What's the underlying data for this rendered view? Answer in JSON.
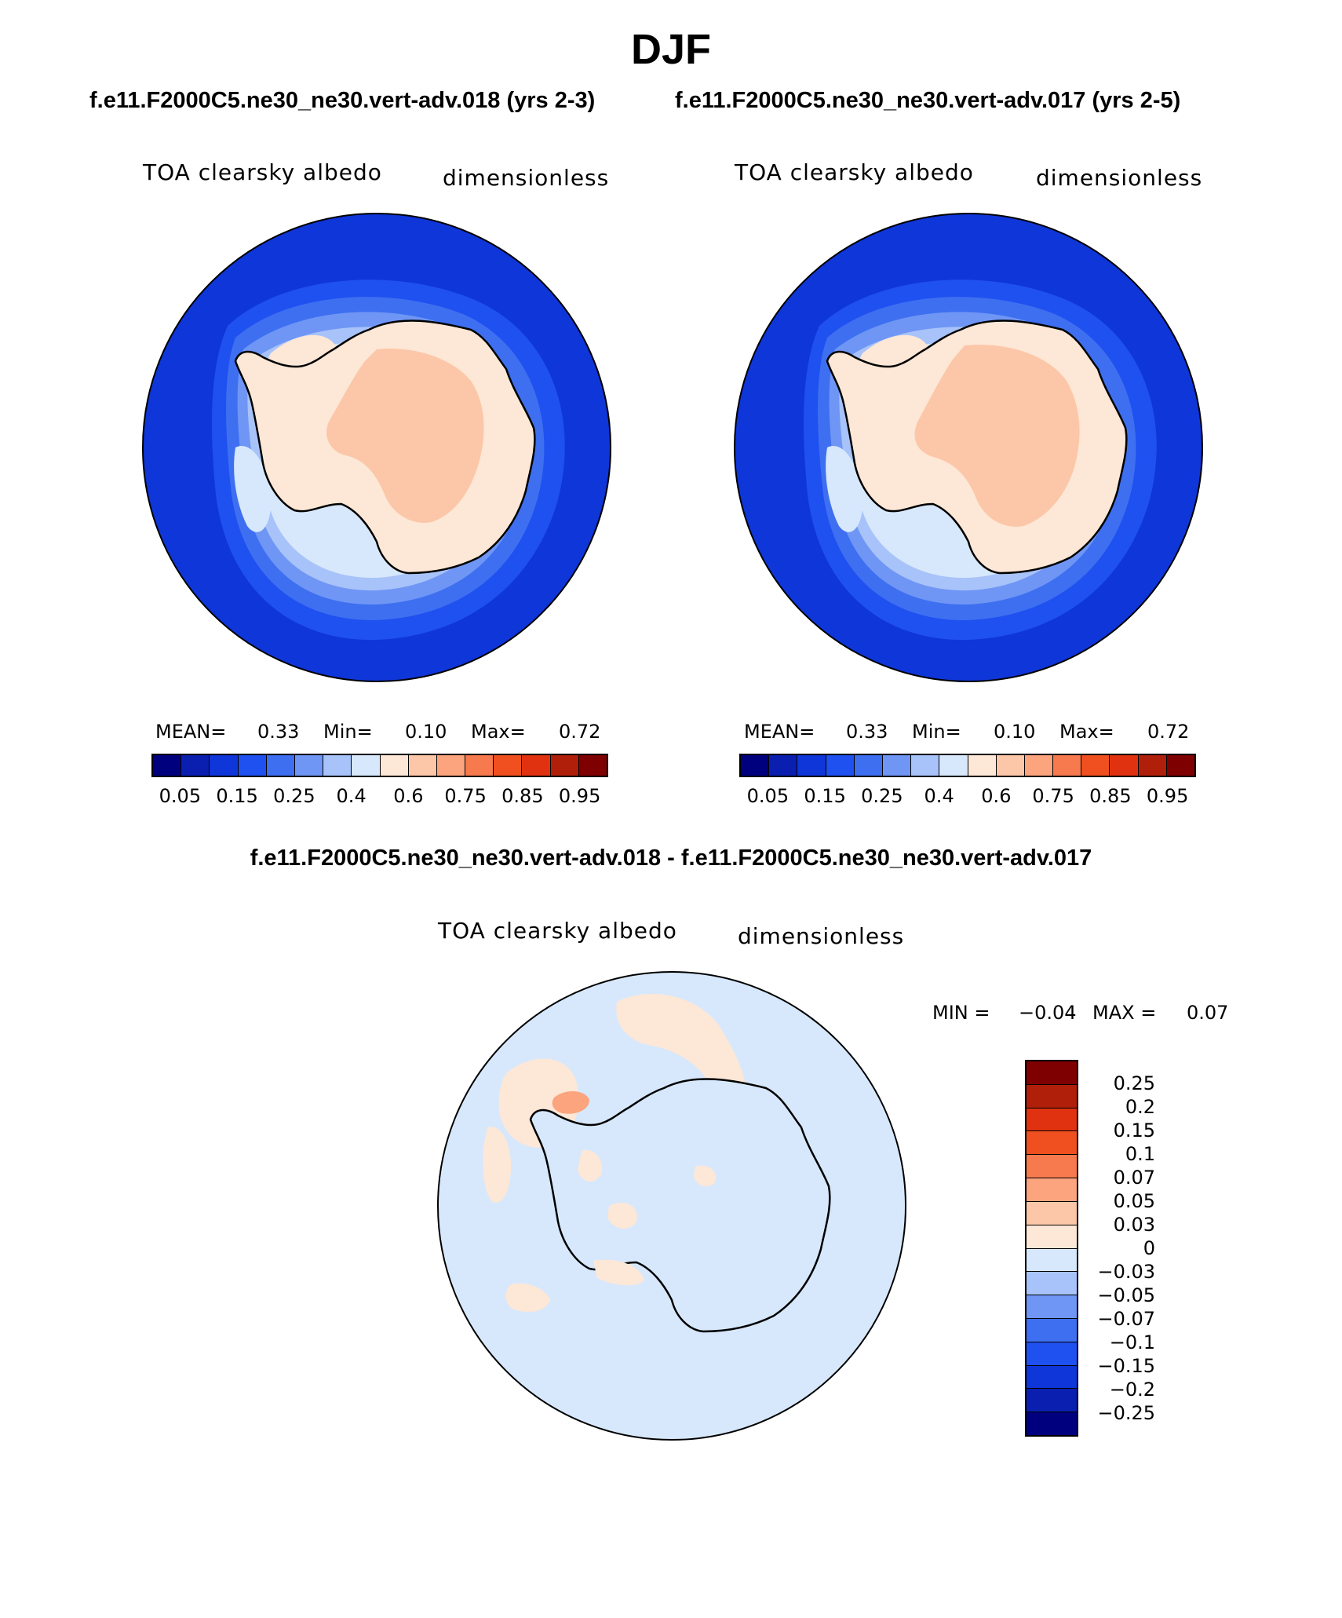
{
  "title": "DJF",
  "case1_title": "f.e11.F2000C5.ne30_ne30.vert-adv.018 (yrs 2-3)",
  "case2_title": "f.e11.F2000C5.ne30_ne30.vert-adv.017 (yrs 2-5)",
  "diff_title": "f.e11.F2000C5.ne30_ne30.vert-adv.018 - f.e11.F2000C5.ne30_ne30.vert-adv.017",
  "variable": "TOA clearsky albedo",
  "units": "dimensionless",
  "panel1": {
    "mean_label": "MEAN=",
    "mean": "0.33",
    "min_label": "Min=",
    "min": "0.10",
    "max_label": "Max=",
    "max": "0.72"
  },
  "panel2": {
    "mean_label": "MEAN=",
    "mean": "0.33",
    "min_label": "Min=",
    "min": "0.10",
    "max_label": "Max=",
    "max": "0.72"
  },
  "diff_stats": {
    "min_label": "MIN =",
    "min": "−0.04",
    "max_label": "MAX =",
    "max": "0.07"
  },
  "colorbar": {
    "colors": [
      "#00007f",
      "#0a1fb0",
      "#0f36d8",
      "#1f50f0",
      "#3d6ff0",
      "#6f96f5",
      "#a8c3f9",
      "#d7e8fc",
      "#fde7d6",
      "#fcc7a8",
      "#fba47e",
      "#f77a4f",
      "#f0501f",
      "#e03210",
      "#b01f0a",
      "#7f0000"
    ],
    "ticks": [
      "0.05",
      "0.15",
      "0.25",
      "0.4",
      "0.6",
      "0.75",
      "0.85",
      "0.95"
    ]
  },
  "diff_colorbar": {
    "colors": [
      "#7f0000",
      "#b01f0a",
      "#e03210",
      "#f0501f",
      "#f77a4f",
      "#fba47e",
      "#fcc7a8",
      "#fde7d6",
      "#d7e8fc",
      "#a8c3f9",
      "#6f96f5",
      "#3d6ff0",
      "#1f50f0",
      "#0f36d8",
      "#0a1fb0",
      "#00007f"
    ],
    "ticks": [
      "0.25",
      "0.2",
      "0.15",
      "0.1",
      "0.07",
      "0.05",
      "0.03",
      "0",
      "−0.03",
      "−0.05",
      "−0.07",
      "−0.1",
      "−0.15",
      "−0.2",
      "−0.25"
    ]
  }
}
